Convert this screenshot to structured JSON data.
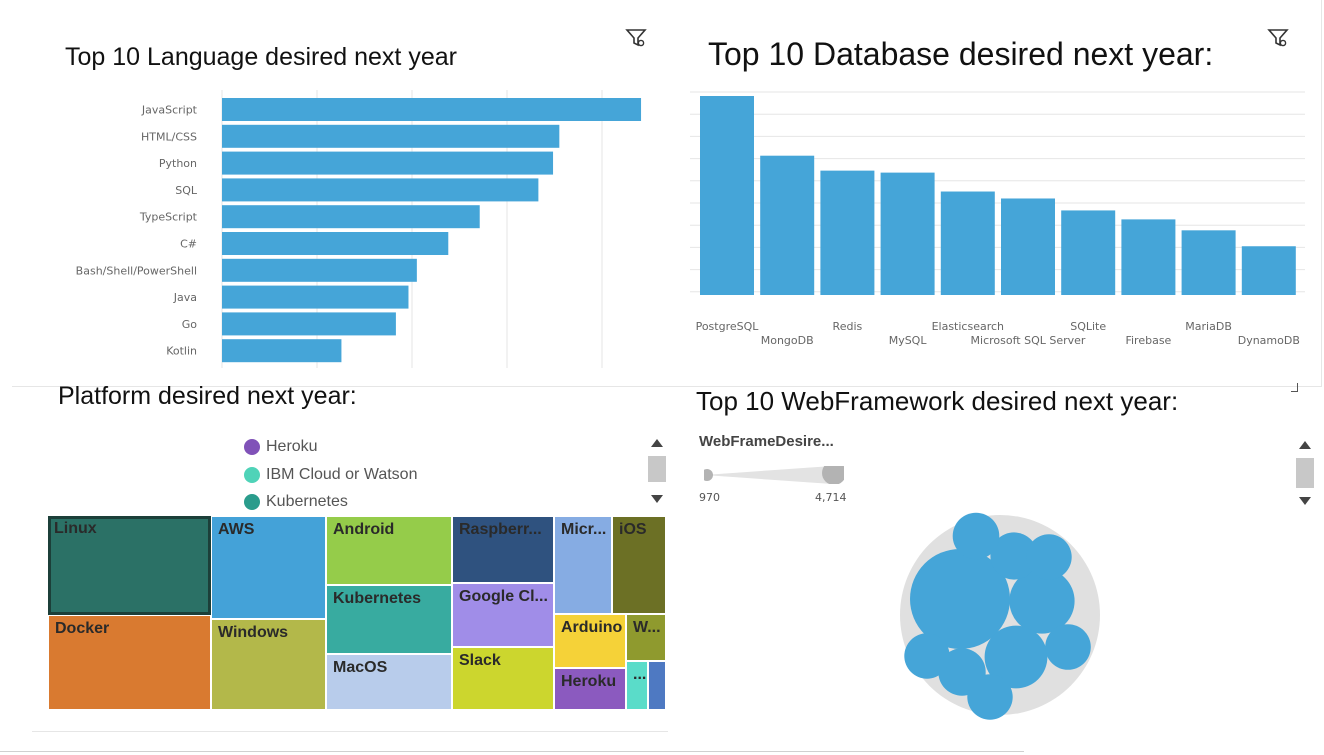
{
  "panels": {
    "language": {
      "title": "Top 10 Language desired next year"
    },
    "database": {
      "title": "Top 10 Database desired next year:"
    },
    "platform": {
      "title": "Platform desired next year:"
    },
    "webframework": {
      "title": "Top 10 WebFramework desired next year:"
    }
  },
  "icons": {
    "filter": "filter-icon",
    "expand": "expand-corner-icon"
  },
  "colors": {
    "bar": "#45a5d8",
    "grid": "#e6e6e6",
    "bubble_outer": "#e0e0e0"
  },
  "chart_data": [
    {
      "type": "bar",
      "orientation": "horizontal",
      "title": "Top 10 Language desired next year",
      "categories": [
        "JavaScript",
        "HTML/CSS",
        "Python",
        "SQL",
        "TypeScript",
        "C#",
        "Bash/Shell/PowerShell",
        "Java",
        "Go",
        "Kotlin"
      ],
      "values": [
        100,
        80.5,
        79,
        75.5,
        61.5,
        54,
        46.5,
        44.5,
        41.5,
        28.5
      ],
      "xlim": [
        0,
        105
      ]
    },
    {
      "type": "bar",
      "title": "Top 10 Database desired next year:",
      "categories": [
        "PostgreSQL",
        "MongoDB",
        "Redis",
        "MySQL",
        "Elasticsearch",
        "Microsoft SQL Server",
        "SQLite",
        "Firebase",
        "MariaDB",
        "DynamoDB"
      ],
      "values": [
        100,
        70,
        62.5,
        61.5,
        52,
        48.5,
        42.5,
        38,
        32.5,
        24.5
      ],
      "ylim": [
        0,
        105
      ]
    },
    {
      "type": "treemap",
      "title": "Platform desired next year:",
      "legend": [
        {
          "label": "Heroku",
          "color": "#8052b8"
        },
        {
          "label": "IBM Cloud or Watson",
          "color": "#4fd3b8"
        },
        {
          "label": "Kubernetes",
          "color": "#2a9c8c"
        }
      ],
      "cells": [
        {
          "label": "Linux",
          "color": "#2b7166",
          "selected": true
        },
        {
          "label": "Docker",
          "color": "#d97a30"
        },
        {
          "label": "AWS",
          "color": "#44a2d8"
        },
        {
          "label": "Windows",
          "color": "#b3b84a"
        },
        {
          "label": "Android",
          "color": "#95cc4a"
        },
        {
          "label": "Kubernetes",
          "color": "#38aba0"
        },
        {
          "label": "MacOS",
          "color": "#b8cceb"
        },
        {
          "label": "Raspberr...",
          "color": "#2f527f"
        },
        {
          "label": "Google Cl...",
          "color": "#a08de8"
        },
        {
          "label": "Slack",
          "color": "#ccd62e"
        },
        {
          "label": "Micr...",
          "color": "#86ace3"
        },
        {
          "label": "iOS",
          "color": "#6c7025"
        },
        {
          "label": "Arduino",
          "color": "#f5d238"
        },
        {
          "label": "W...",
          "color": "#8f9a2e"
        },
        {
          "label": "Heroku",
          "color": "#8b5abf"
        },
        {
          "label": "...",
          "color": "#5adcc9"
        },
        {
          "label": "",
          "color": "#4e79c2"
        }
      ]
    },
    {
      "type": "bubble",
      "title": "Top 10 WebFramework desired next year:",
      "size_legend": {
        "title": "WebFrameDesire...",
        "min": "970",
        "max": "4,714"
      },
      "values": [
        4714,
        2000,
        1860,
        1060,
        1050,
        1020,
        980,
        975,
        972,
        970
      ]
    }
  ]
}
